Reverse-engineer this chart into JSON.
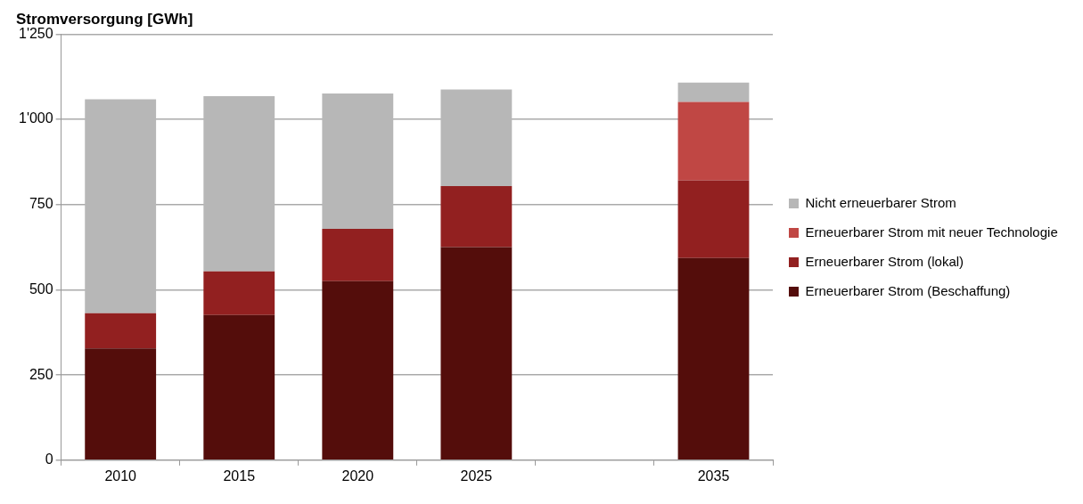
{
  "chart_data": {
    "type": "bar",
    "title": "Stromversorgung [GWh]",
    "stacked": true,
    "categories": [
      "2010",
      "2015",
      "2020",
      "2025",
      null,
      "2035"
    ],
    "series": [
      {
        "name": "Erneuerbarer Strom (Beschaffung)",
        "color": "#540d0b",
        "values": [
          328,
          426,
          525,
          625,
          null,
          593
        ]
      },
      {
        "name": "Erneuerbarer Strom (lokal)",
        "color": "#922020",
        "values": [
          103,
          128,
          154,
          179,
          null,
          228
        ]
      },
      {
        "name": "Erneuerbarer Strom mit neuer Technologie",
        "color": "#c04744",
        "values": [
          null,
          null,
          null,
          null,
          null,
          230
        ]
      },
      {
        "name": "Nicht erneuerbarer Strom",
        "color": "#b7b7b7",
        "values": [
          628,
          514,
          397,
          284,
          null,
          57
        ]
      }
    ],
    "ylim": [
      0,
      1250
    ],
    "yticks": [
      0,
      250,
      500,
      750,
      {
        "value": 1000,
        "label": "1'000"
      },
      {
        "value": 1250,
        "label": "1'250"
      }
    ],
    "grid": "y",
    "legend": "right"
  }
}
